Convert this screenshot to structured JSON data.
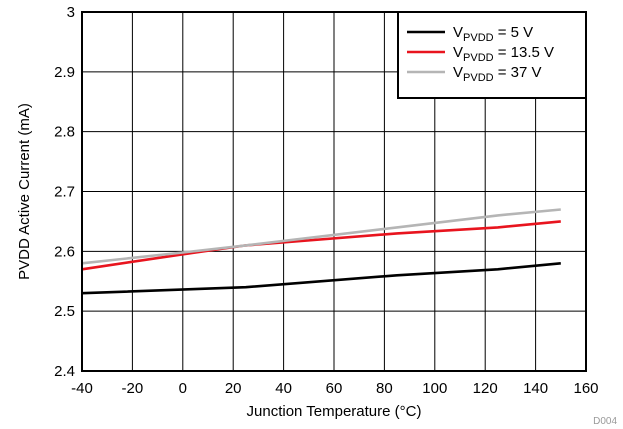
{
  "chart_data": {
    "type": "line",
    "xlabel": "Junction Temperature (°C)",
    "ylabel": "PVDD Active Current (mA)",
    "xlim": [
      -40,
      160
    ],
    "ylim": [
      2.4,
      3.0
    ],
    "xticks": [
      -40,
      -20,
      0,
      20,
      40,
      60,
      80,
      100,
      120,
      140,
      160
    ],
    "yticks": [
      2.4,
      2.5,
      2.6,
      2.7,
      2.8,
      2.9,
      3.0
    ],
    "xtick_labels": [
      "-40",
      "-20",
      "0",
      "20",
      "40",
      "60",
      "80",
      "100",
      "120",
      "140",
      "160"
    ],
    "ytick_labels": [
      "2.4",
      "2.5",
      "2.6",
      "2.7",
      "2.8",
      "2.9",
      "3"
    ],
    "grid": true,
    "legend_position": "top-right",
    "footnote": "D004",
    "series": [
      {
        "name": "V_PVDD = 5 V",
        "name_main": "V",
        "name_sub": "PVDD",
        "name_rest": " = 5 V",
        "color": "#000000",
        "x": [
          -40,
          25,
          85,
          125,
          150
        ],
        "y": [
          2.53,
          2.54,
          2.56,
          2.57,
          2.58
        ]
      },
      {
        "name": "V_PVDD = 13.5 V",
        "name_main": "V",
        "name_sub": "PVDD",
        "name_rest": " = 13.5 V",
        "color": "#e8141e",
        "x": [
          -40,
          0,
          25,
          85,
          125,
          150
        ],
        "y": [
          2.57,
          2.595,
          2.61,
          2.63,
          2.64,
          2.65
        ]
      },
      {
        "name": "V_PVDD = 37 V",
        "name_main": "V",
        "name_sub": "PVDD",
        "name_rest": " = 37 V",
        "color": "#b5b5b5",
        "x": [
          -40,
          0,
          25,
          85,
          125,
          150
        ],
        "y": [
          2.58,
          2.598,
          2.61,
          2.64,
          2.66,
          2.67
        ]
      }
    ]
  }
}
